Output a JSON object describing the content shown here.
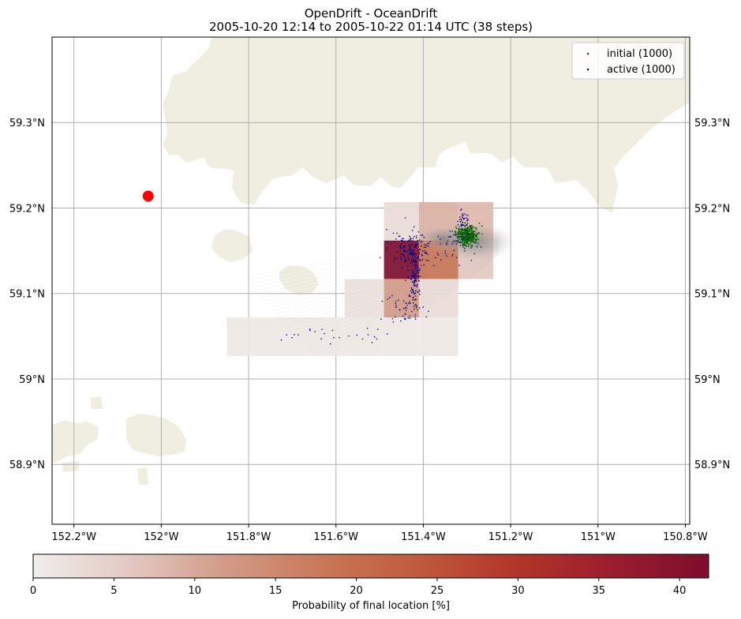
{
  "chart_data": {
    "type": "heatmap",
    "title": "OpenDrift - OceanDrift",
    "subtitle": "2005-10-20 12:14 to 2005-10-22 01:14 UTC (38 steps)",
    "xlim": [
      -152.25,
      -150.79
    ],
    "ylim": [
      58.83,
      59.4
    ],
    "x_ticks": [
      {
        "value": -152.2,
        "label": "152.2°W"
      },
      {
        "value": -152.0,
        "label": "152°W"
      },
      {
        "value": -151.8,
        "label": "151.8°W"
      },
      {
        "value": -151.6,
        "label": "151.6°W"
      },
      {
        "value": -151.4,
        "label": "151.4°W"
      },
      {
        "value": -151.2,
        "label": "151.2°W"
      },
      {
        "value": -151.0,
        "label": "151°W"
      },
      {
        "value": -150.8,
        "label": "150.8°W"
      }
    ],
    "y_ticks": [
      {
        "value": 58.9,
        "label": "58.9°N"
      },
      {
        "value": 59.0,
        "label": "59°N"
      },
      {
        "value": 59.1,
        "label": "59.1°N"
      },
      {
        "value": 59.2,
        "label": "59.2°N"
      },
      {
        "value": 59.3,
        "label": "59.3°N"
      }
    ],
    "grid": true,
    "legend": {
      "placement": "top-right",
      "entries": [
        {
          "label": "initial (1000)",
          "color": "#006400"
        },
        {
          "label": "active (1000)",
          "color": "#00008b"
        }
      ]
    },
    "colorbar": {
      "label": "Probability of final location [%]",
      "min": 0,
      "max": 41.8,
      "ticks": [
        0,
        5,
        10,
        15,
        20,
        25,
        30,
        35,
        40
      ],
      "colors": [
        "#f1eeec",
        "#e3c9c2",
        "#d29a87",
        "#c97857",
        "#c05a3c",
        "#b2352a",
        "#9b1d2e",
        "#7d0d2c"
      ]
    },
    "probability_cells": [
      {
        "lon0": -151.85,
        "lon1": -151.58,
        "lat0": 59.027,
        "lat1": 59.072,
        "value": 1
      },
      {
        "lon0": -151.58,
        "lon1": -151.49,
        "lat0": 59.027,
        "lat1": 59.072,
        "value": 1
      },
      {
        "lon0": -151.49,
        "lon1": -151.41,
        "lat0": 59.027,
        "lat1": 59.072,
        "value": 1
      },
      {
        "lon0": -151.41,
        "lon1": -151.32,
        "lat0": 59.027,
        "lat1": 59.072,
        "value": 1
      },
      {
        "lon0": -151.58,
        "lon1": -151.49,
        "lat0": 59.072,
        "lat1": 59.117,
        "value": 2
      },
      {
        "lon0": -151.49,
        "lon1": -151.41,
        "lat0": 59.072,
        "lat1": 59.117,
        "value": 12
      },
      {
        "lon0": -151.41,
        "lon1": -151.32,
        "lat0": 59.072,
        "lat1": 59.117,
        "value": 3
      },
      {
        "lon0": -151.49,
        "lon1": -151.41,
        "lat0": 59.117,
        "lat1": 59.162,
        "value": 41.8
      },
      {
        "lon0": -151.41,
        "lon1": -151.32,
        "lat0": 59.117,
        "lat1": 59.162,
        "value": 19
      },
      {
        "lon0": -151.32,
        "lon1": -151.24,
        "lat0": 59.117,
        "lat1": 59.162,
        "value": 6
      },
      {
        "lon0": -151.49,
        "lon1": -151.41,
        "lat0": 59.162,
        "lat1": 59.207,
        "value": 3
      },
      {
        "lon0": -151.41,
        "lon1": -151.32,
        "lat0": 59.162,
        "lat1": 59.207,
        "value": 9
      },
      {
        "lon0": -151.32,
        "lon1": -151.24,
        "lat0": 59.162,
        "lat1": 59.207,
        "value": 8
      }
    ],
    "marker": {
      "lon": -152.03,
      "lat": 59.214,
      "color": "#ff0000"
    },
    "initial_cluster": {
      "lon": -151.3,
      "lat": 59.168,
      "count": 1000
    },
    "colors": {
      "land": "#efeee0",
      "grid": "#b0b0b0",
      "trail": "#888888"
    }
  }
}
